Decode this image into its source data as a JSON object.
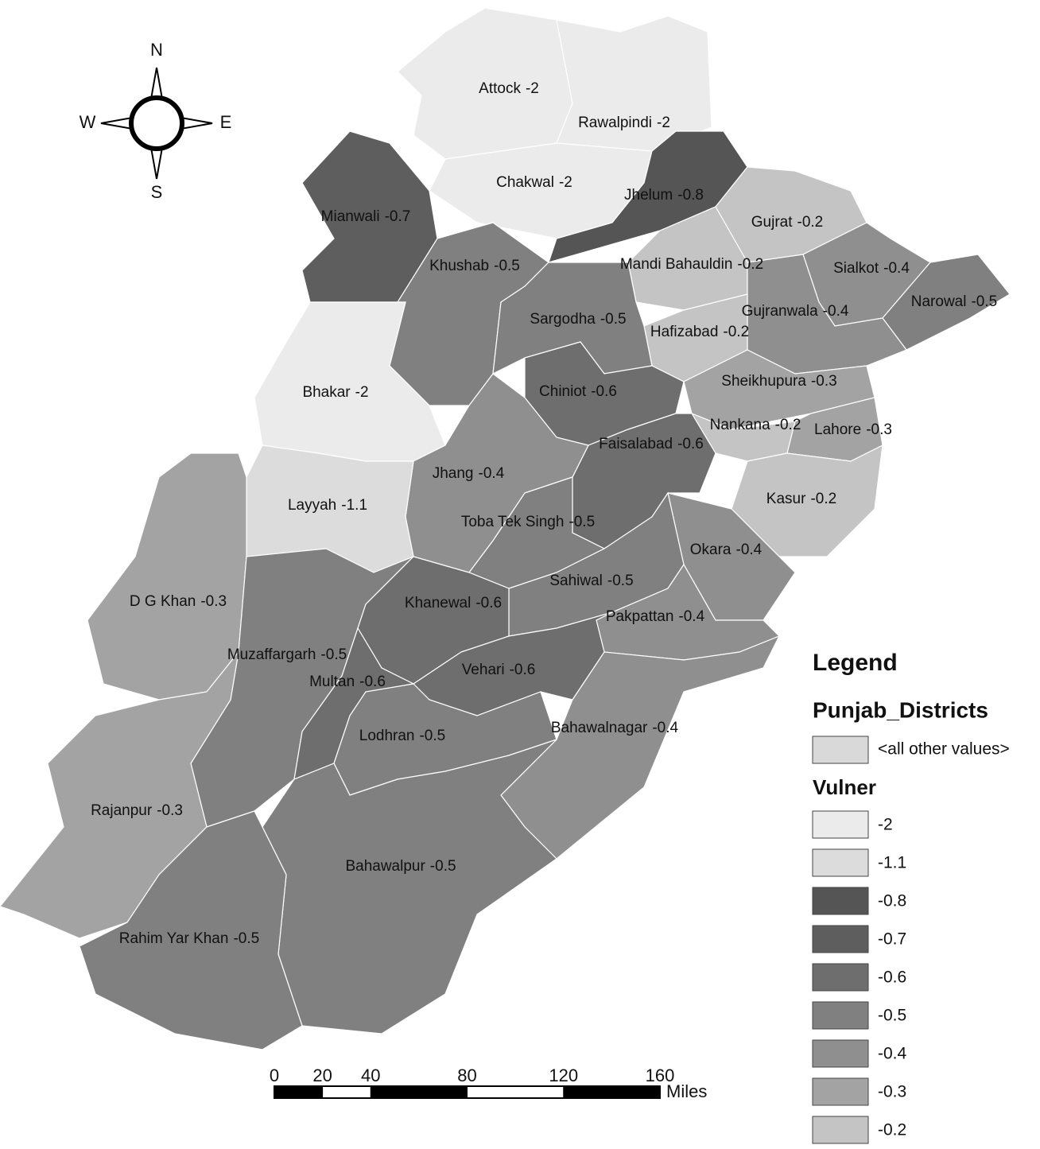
{
  "compass": {
    "north": "N",
    "east": "E",
    "south": "S",
    "west": "W"
  },
  "districts": [
    {
      "name": "Attock",
      "value": -2
    },
    {
      "name": "Rawalpindi",
      "value": -2
    },
    {
      "name": "Chakwal",
      "value": -2
    },
    {
      "name": "Jhelum",
      "value": -0.8
    },
    {
      "name": "Mianwali",
      "value": -0.7
    },
    {
      "name": "Gujrat",
      "value": -0.2
    },
    {
      "name": "Mandi Bahauldin",
      "value": -0.2
    },
    {
      "name": "Sialkot",
      "value": -0.4
    },
    {
      "name": "Narowal",
      "value": -0.5
    },
    {
      "name": "Gujranwala",
      "value": -0.4
    },
    {
      "name": "Hafizabad",
      "value": -0.2
    },
    {
      "name": "Sheikhupura",
      "value": -0.3
    },
    {
      "name": "Nankana",
      "value": -0.2
    },
    {
      "name": "Lahore",
      "value": -0.3
    },
    {
      "name": "Kasur",
      "value": -0.2
    },
    {
      "name": "Okara",
      "value": -0.4
    },
    {
      "name": "Khushab",
      "value": -0.5
    },
    {
      "name": "Sargodha",
      "value": -0.5
    },
    {
      "name": "Bhakar",
      "value": -2
    },
    {
      "name": "Chiniot",
      "value": -0.6
    },
    {
      "name": "Faisalabad",
      "value": -0.6
    },
    {
      "name": "Jhang",
      "value": -0.4
    },
    {
      "name": "Layyah",
      "value": -1.1
    },
    {
      "name": "Toba Tek Singh",
      "value": -0.5
    },
    {
      "name": "Sahiwal",
      "value": -0.5
    },
    {
      "name": "D G Khan",
      "value": -0.3
    },
    {
      "name": "Muzaffargarh",
      "value": -0.5
    },
    {
      "name": "Khanewal",
      "value": -0.6
    },
    {
      "name": "Pakpattan",
      "value": -0.4
    },
    {
      "name": "Multan",
      "value": -0.6
    },
    {
      "name": "Vehari",
      "value": -0.6
    },
    {
      "name": "Lodhran",
      "value": -0.5
    },
    {
      "name": "Bahawalnagar",
      "value": -0.4
    },
    {
      "name": "Rajanpur",
      "value": -0.3
    },
    {
      "name": "Bahawalpur",
      "value": -0.5
    },
    {
      "name": "Rahim Yar Khan",
      "value": -0.5
    }
  ],
  "legend": {
    "title": "Legend",
    "layer": "Punjab_Districts",
    "other": {
      "label": "<all other values>",
      "color": "#d9d9d9"
    },
    "field": "Vulner",
    "classes": [
      {
        "value": -2,
        "color": "#ebebeb"
      },
      {
        "value": -1.1,
        "color": "#dcdcdc"
      },
      {
        "value": -0.8,
        "color": "#555555"
      },
      {
        "value": -0.7,
        "color": "#5e5e5e"
      },
      {
        "value": -0.6,
        "color": "#6e6e6e"
      },
      {
        "value": -0.5,
        "color": "#808080"
      },
      {
        "value": -0.4,
        "color": "#8f8f8f"
      },
      {
        "value": -0.3,
        "color": "#a3a3a3"
      },
      {
        "value": -0.2,
        "color": "#c4c4c4"
      }
    ]
  },
  "scale_bar": {
    "ticks": [
      0,
      20,
      40,
      80,
      120,
      160
    ],
    "unit": "Miles"
  }
}
